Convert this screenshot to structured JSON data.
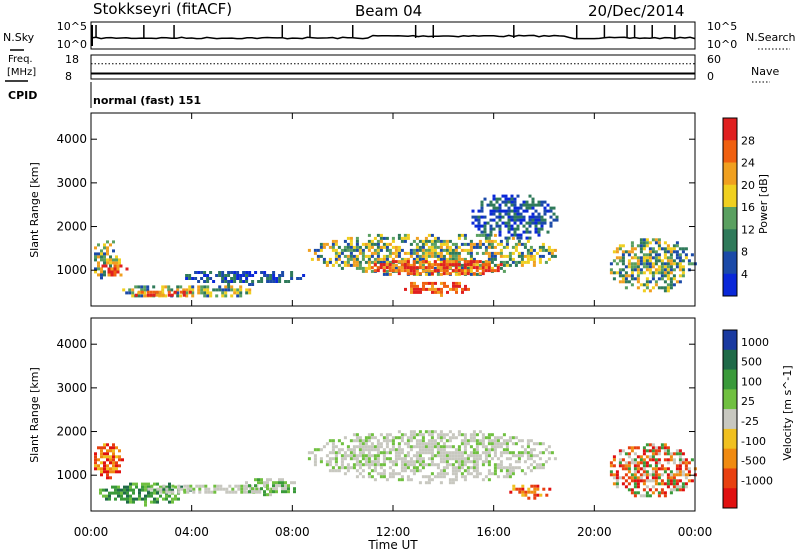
{
  "header": {
    "title": "Stokkseyri (fitACF)",
    "beam": "Beam 04",
    "date": "20/Dec/2014"
  },
  "status_panel": {
    "nsky_label": "N.Sky",
    "nsearch_label": "N.Search",
    "freq_label_1": "Freq.",
    "freq_label_2": "[MHz]",
    "nave_label": "Nave",
    "cpid_label": "CPID",
    "cpid_value": "normal (fast) 151",
    "noise_ticks_left": [
      "10^5",
      "10^0"
    ],
    "noise_ticks_right": [
      "10^5",
      "10^0"
    ],
    "freq_ticks": [
      "18",
      "8"
    ],
    "nave_ticks": [
      "60",
      "0"
    ],
    "noise_spike_times_h": [
      0.2,
      2.1,
      3.3,
      7.6,
      8.7,
      10.4,
      12.9,
      13.6,
      16.8,
      19.3,
      20.4,
      21.3,
      21.6,
      22.3,
      23.2
    ],
    "freq_baseline_mhz": 10.3,
    "nave_baseline": 38
  },
  "x_axis": {
    "label": "Time UT",
    "ticks": [
      "00:00",
      "04:00",
      "08:00",
      "12:00",
      "16:00",
      "20:00",
      "00:00"
    ],
    "range_h": [
      0,
      24
    ]
  },
  "colors": {
    "power_scale": [
      "#0a28d8",
      "#1b4aa8",
      "#2f7a5a",
      "#5aa060",
      "#f0d020",
      "#f0a020",
      "#f06010",
      "#e02020"
    ],
    "velocity_scale": [
      "#1a3aa0",
      "#1f6a48",
      "#3a9a3a",
      "#70c040",
      "#c8c8c0",
      "#f0c020",
      "#f08a10",
      "#e84010",
      "#e01010"
    ]
  },
  "chart_data": [
    {
      "type": "heatmap",
      "title": "Power",
      "xlabel": "Time UT",
      "ylabel": "Slant Range [km]",
      "xlim": [
        0,
        24
      ],
      "ylim": [
        180,
        4600
      ],
      "y_ticks": [
        "1000",
        "2000",
        "3000",
        "4000"
      ],
      "colorbar": {
        "label": "Power [dB]",
        "ticks": [
          "4",
          "8",
          "12",
          "16",
          "20",
          "24",
          "28"
        ],
        "range": [
          0,
          32
        ]
      },
      "blobs": [
        {
          "t0": 0.0,
          "t1": 1.1,
          "r0": 800,
          "r1": 1750,
          "level": "mid"
        },
        {
          "t0": 0.3,
          "t1": 1.4,
          "r0": 900,
          "r1": 1200,
          "level": "high"
        },
        {
          "t0": 1.0,
          "t1": 6.5,
          "r0": 380,
          "r1": 720,
          "level": "mid"
        },
        {
          "t0": 1.5,
          "t1": 4.0,
          "r0": 400,
          "r1": 600,
          "level": "high"
        },
        {
          "t0": 3.5,
          "t1": 8.5,
          "r0": 700,
          "r1": 1050,
          "level": "low"
        },
        {
          "t0": 8.5,
          "t1": 18.5,
          "r0": 900,
          "r1": 1900,
          "level": "mid"
        },
        {
          "t0": 11.0,
          "t1": 16.5,
          "r0": 900,
          "r1": 1300,
          "level": "high"
        },
        {
          "t0": 12.2,
          "t1": 15.0,
          "r0": 450,
          "r1": 800,
          "level": "high"
        },
        {
          "t0": 15.0,
          "t1": 18.5,
          "r0": 1700,
          "r1": 2800,
          "level": "low"
        },
        {
          "t0": 20.5,
          "t1": 24.0,
          "r0": 500,
          "r1": 1800,
          "level": "mid"
        }
      ]
    },
    {
      "type": "heatmap",
      "title": "Velocity",
      "xlabel": "Time UT",
      "ylabel": "Slant Range [km]",
      "xlim": [
        0,
        24
      ],
      "ylim": [
        180,
        4600
      ],
      "y_ticks": [
        "1000",
        "2000",
        "3000",
        "4000"
      ],
      "colorbar": {
        "label": "Velocity [m s^-1]",
        "ticks": [
          "1000",
          "500",
          "100",
          "25",
          "-25",
          "-100",
          "-500",
          "-1000"
        ]
      },
      "blobs": [
        {
          "t0": 0.0,
          "t1": 1.2,
          "r0": 900,
          "r1": 1800,
          "level": "negative"
        },
        {
          "t0": 0.2,
          "t1": 4.0,
          "r0": 350,
          "r1": 900,
          "level": "positive"
        },
        {
          "t0": 2.0,
          "t1": 7.5,
          "r0": 600,
          "r1": 850,
          "level": "near-zero"
        },
        {
          "t0": 6.0,
          "t1": 8.2,
          "r0": 550,
          "r1": 1000,
          "level": "slight-positive"
        },
        {
          "t0": 8.5,
          "t1": 18.5,
          "r0": 850,
          "r1": 2100,
          "level": "near-zero"
        },
        {
          "t0": 16.5,
          "t1": 18.3,
          "r0": 500,
          "r1": 850,
          "level": "negative"
        },
        {
          "t0": 20.5,
          "t1": 24.0,
          "r0": 500,
          "r1": 1800,
          "level": "mixed"
        }
      ]
    }
  ]
}
